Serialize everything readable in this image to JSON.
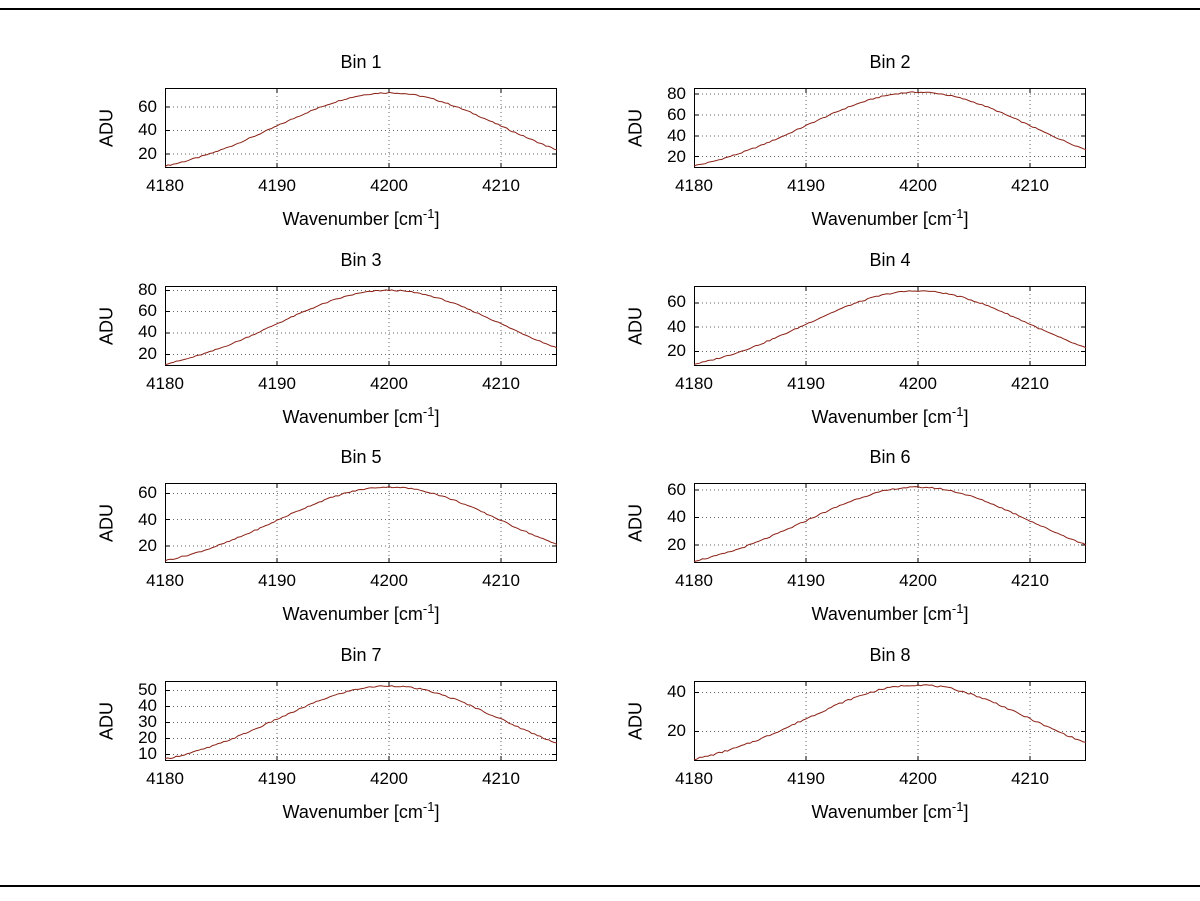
{
  "figure": {
    "background": "#ffffff",
    "border_color": "#000000",
    "line_color": "#8b2015",
    "grid_color": "#666666",
    "axis_color": "#000000",
    "text_color": "#000000"
  },
  "x_values": [
    4180,
    4181,
    4182,
    4183,
    4184,
    4185,
    4186,
    4187,
    4188,
    4189,
    4190,
    4191,
    4192,
    4193,
    4194,
    4195,
    4196,
    4197,
    4198,
    4199,
    4200,
    4201,
    4202,
    4203,
    4204,
    4205,
    4206,
    4207,
    4208,
    4209,
    4210,
    4211,
    4212,
    4213,
    4214,
    4215
  ],
  "chart_data": [
    {
      "type": "line",
      "title": "Bin 1",
      "ylabel": "ADU",
      "xlabel_pre": "Wavenumber [cm",
      "xlabel_sup": "-1",
      "xlabel_post": "]",
      "xlim": [
        4180,
        4215
      ],
      "ylim": [
        8,
        76
      ],
      "xticks": [
        4180,
        4190,
        4200,
        4210
      ],
      "yticks": [
        20,
        40,
        60
      ],
      "grid": true,
      "y": [
        9.7,
        11.8,
        14.3,
        17.0,
        20.0,
        23.4,
        27.0,
        31.0,
        35.1,
        39.3,
        43.7,
        48.0,
        52.3,
        56.4,
        60.1,
        63.5,
        66.5,
        68.8,
        70.6,
        71.6,
        72.0,
        71.6,
        70.6,
        68.8,
        66.5,
        63.5,
        60.1,
        56.4,
        52.3,
        48.0,
        43.7,
        39.3,
        35.1,
        31.0,
        27.0,
        23.4
      ]
    },
    {
      "type": "line",
      "title": "Bin 2",
      "ylabel": "ADU",
      "xlabel_pre": "Wavenumber [cm",
      "xlabel_sup": "-1",
      "xlabel_post": "]",
      "xlim": [
        4180,
        4215
      ],
      "ylim": [
        9,
        86
      ],
      "xticks": [
        4180,
        4190,
        4200,
        4210
      ],
      "yticks": [
        20,
        40,
        60,
        80
      ],
      "grid": true,
      "y": [
        11.1,
        13.4,
        16.2,
        19.4,
        22.8,
        26.7,
        30.8,
        35.3,
        39.9,
        44.8,
        49.8,
        54.7,
        59.5,
        64.2,
        68.5,
        72.3,
        75.7,
        78.4,
        80.4,
        81.6,
        82.0,
        81.6,
        80.4,
        78.4,
        75.7,
        72.3,
        68.5,
        64.2,
        59.5,
        54.7,
        49.8,
        44.8,
        39.9,
        35.3,
        30.8,
        26.7
      ]
    },
    {
      "type": "line",
      "title": "Bin 3",
      "ylabel": "ADU",
      "xlabel_pre": "Wavenumber [cm",
      "xlabel_sup": "-1",
      "xlabel_post": "]",
      "xlim": [
        4180,
        4215
      ],
      "ylim": [
        9,
        84
      ],
      "xticks": [
        4180,
        4190,
        4200,
        4210
      ],
      "yticks": [
        20,
        40,
        60,
        80
      ],
      "grid": true,
      "y": [
        10.8,
        13.1,
        15.8,
        18.9,
        22.2,
        26.0,
        30.0,
        34.4,
        39.0,
        43.7,
        48.6,
        53.4,
        58.1,
        62.6,
        66.8,
        70.6,
        73.8,
        76.5,
        78.4,
        79.6,
        80.0,
        79.6,
        78.4,
        76.5,
        73.8,
        70.6,
        66.8,
        62.6,
        58.1,
        53.4,
        48.6,
        43.7,
        39.0,
        34.4,
        30.0,
        26.0
      ]
    },
    {
      "type": "line",
      "title": "Bin 4",
      "ylabel": "ADU",
      "xlabel_pre": "Wavenumber [cm",
      "xlabel_sup": "-1",
      "xlabel_post": "]",
      "xlim": [
        4180,
        4215
      ],
      "ylim": [
        8,
        74
      ],
      "xticks": [
        4180,
        4190,
        4200,
        4210
      ],
      "yticks": [
        20,
        40,
        60
      ],
      "grid": true,
      "y": [
        9.5,
        11.5,
        13.9,
        16.5,
        19.5,
        22.8,
        26.3,
        30.1,
        34.1,
        38.2,
        42.5,
        46.7,
        50.8,
        54.8,
        58.5,
        61.7,
        64.6,
        66.9,
        68.6,
        69.7,
        70.0,
        69.7,
        68.6,
        66.9,
        64.6,
        61.7,
        58.5,
        54.8,
        50.8,
        46.7,
        42.5,
        38.2,
        34.1,
        30.1,
        26.3,
        22.8
      ]
    },
    {
      "type": "line",
      "title": "Bin 5",
      "ylabel": "ADU",
      "xlabel_pre": "Wavenumber [cm",
      "xlabel_sup": "-1",
      "xlabel_post": "]",
      "xlim": [
        4180,
        4215
      ],
      "ylim": [
        7,
        68
      ],
      "xticks": [
        4180,
        4190,
        4200,
        4210
      ],
      "yticks": [
        20,
        40,
        60
      ],
      "grid": true,
      "y": [
        8.8,
        10.7,
        12.9,
        15.3,
        18.1,
        21.1,
        24.4,
        28.0,
        31.7,
        35.4,
        39.5,
        43.4,
        47.2,
        50.9,
        54.3,
        57.3,
        60.0,
        62.1,
        63.7,
        64.7,
        65.0,
        64.7,
        63.7,
        62.1,
        60.0,
        57.3,
        54.3,
        50.9,
        47.2,
        43.4,
        39.5,
        35.4,
        31.7,
        28.0,
        24.4,
        21.1
      ]
    },
    {
      "type": "line",
      "title": "Bin 6",
      "ylabel": "ADU",
      "xlabel_pre": "Wavenumber [cm",
      "xlabel_sup": "-1",
      "xlabel_post": "]",
      "xlim": [
        4180,
        4215
      ],
      "ylim": [
        7,
        65
      ],
      "xticks": [
        4180,
        4190,
        4200,
        4210
      ],
      "yticks": [
        20,
        40,
        60
      ],
      "grid": true,
      "y": [
        8.4,
        10.2,
        12.3,
        14.6,
        17.2,
        20.2,
        23.3,
        26.7,
        30.2,
        33.8,
        37.6,
        41.4,
        45.0,
        48.5,
        51.8,
        54.7,
        57.2,
        59.3,
        60.8,
        61.7,
        62.0,
        61.7,
        60.8,
        59.3,
        57.2,
        54.7,
        51.8,
        48.5,
        45.0,
        41.4,
        37.6,
        33.8,
        30.2,
        26.7,
        23.3,
        20.2
      ]
    },
    {
      "type": "line",
      "title": "Bin 7",
      "ylabel": "ADU",
      "xlabel_pre": "Wavenumber [cm",
      "xlabel_sup": "-1",
      "xlabel_post": "]",
      "xlim": [
        4180,
        4215
      ],
      "ylim": [
        6,
        56
      ],
      "xticks": [
        4180,
        4190,
        4200,
        4210
      ],
      "yticks": [
        10,
        20,
        30,
        40,
        50
      ],
      "grid": true,
      "y": [
        7.2,
        8.7,
        10.5,
        12.5,
        14.7,
        17.2,
        19.9,
        22.8,
        25.8,
        28.9,
        32.2,
        35.2,
        38.4,
        41.5,
        44.3,
        46.7,
        48.9,
        50.7,
        51.9,
        52.7,
        53.0,
        52.7,
        51.9,
        50.7,
        48.9,
        46.7,
        44.3,
        41.5,
        38.4,
        35.2,
        32.2,
        28.9,
        25.8,
        22.8,
        19.9,
        17.2
      ]
    },
    {
      "type": "line",
      "title": "Bin 8",
      "ylabel": "ADU",
      "xlabel_pre": "Wavenumber [cm",
      "xlabel_sup": "-1",
      "xlabel_post": "]",
      "xlim": [
        4180,
        4215
      ],
      "ylim": [
        5,
        46
      ],
      "xticks": [
        4180,
        4190,
        4200,
        4210
      ],
      "yticks": [
        20,
        40
      ],
      "grid": true,
      "y": [
        5.9,
        7.2,
        8.7,
        10.4,
        12.2,
        14.3,
        16.5,
        18.9,
        21.4,
        24.0,
        26.7,
        29.2,
        31.9,
        34.5,
        36.7,
        38.8,
        40.6,
        42.1,
        43.1,
        43.8,
        44.0,
        43.8,
        43.1,
        42.1,
        40.6,
        38.8,
        36.7,
        34.5,
        31.9,
        29.2,
        26.7,
        24.0,
        21.4,
        18.9,
        16.5,
        14.3
      ]
    }
  ]
}
